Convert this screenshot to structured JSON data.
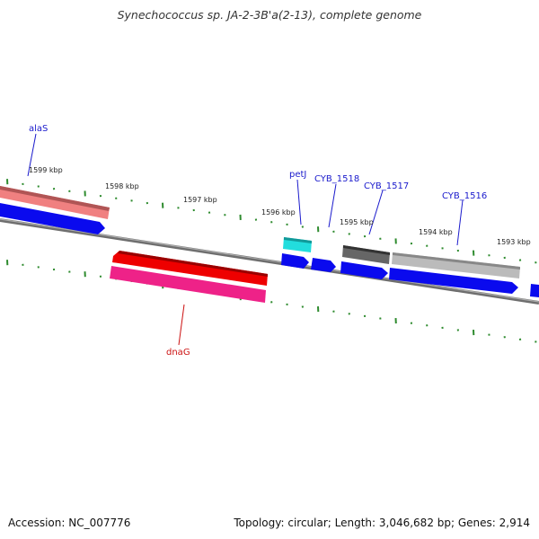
{
  "title": "Synechococcus sp. JA-2-3B'a(2-13), complete genome",
  "footer": {
    "accession": "Accession: NC_007776",
    "summary": "Topology: circular; Length: 3,046,682 bp; Genes: 2,914"
  },
  "colors": {
    "backbone": "#777777",
    "tick": "#2e8b2e",
    "label_blue": "#1a1acc",
    "label_red": "#cc1111",
    "cds_blue": "#0a0aee",
    "rna_cyan": "#22dddd",
    "dnaG_red": "#ee0000",
    "dnaG_pink": "#ee2288",
    "alaS_pink": "#f08080",
    "gray_dark": "#666666",
    "gray_light": "#bbbbbb"
  },
  "kbp_ticks": [
    "1599 kbp",
    "1598 kbp",
    "1597 kbp",
    "1596 kbp",
    "1595 kbp",
    "1594 kbp",
    "1593 kbp"
  ],
  "gene_labels": [
    "alaS",
    "petJ",
    "CYB_1518",
    "CYB_1517",
    "CYB_1516",
    "dnaG"
  ]
}
